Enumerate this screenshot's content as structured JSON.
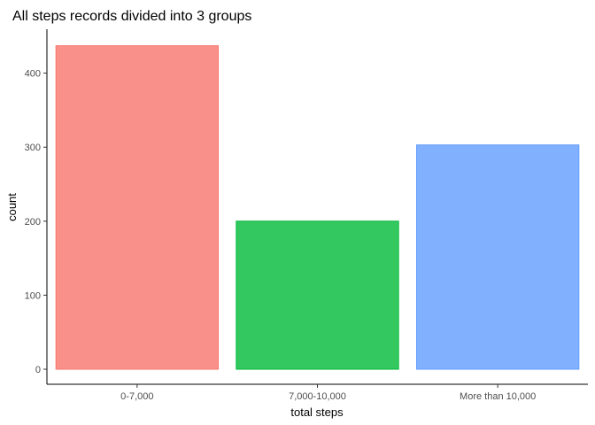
{
  "chart_data": {
    "type": "bar",
    "title": "All steps records divided into 3 groups",
    "xlabel": "total steps",
    "ylabel": "count",
    "categories": [
      "0-7,000",
      "7,000-10,000",
      "More than 10,000"
    ],
    "values": [
      437,
      200,
      303
    ],
    "colors": [
      "#F8766D",
      "#00BA38",
      "#619CFF"
    ],
    "ylim": [
      0,
      450
    ],
    "yticks": [
      0,
      100,
      200,
      300,
      400
    ],
    "grid": false,
    "legend": "none"
  }
}
